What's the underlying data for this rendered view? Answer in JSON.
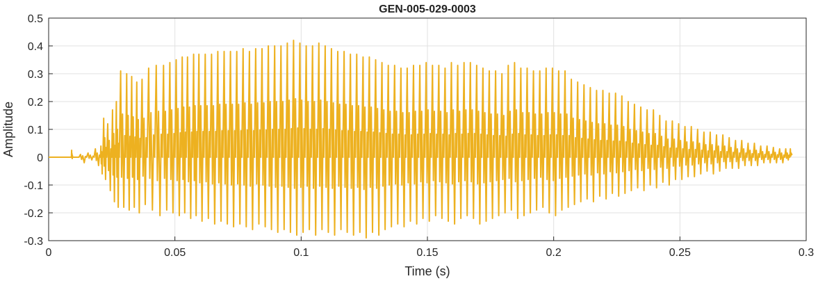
{
  "chart_data": {
    "type": "line",
    "title": "GEN-005-029-0003",
    "xlabel": "Time (s)",
    "ylabel": "Amplitude",
    "xlim": [
      0,
      0.3
    ],
    "ylim": [
      -0.3,
      0.5
    ],
    "xticks": [
      0,
      0.05,
      0.1,
      0.15,
      0.2,
      0.25,
      0.3
    ],
    "xtick_labels": [
      "0",
      "0.05",
      "0.1",
      "0.15",
      "0.2",
      "0.25",
      "0.3"
    ],
    "yticks": [
      -0.3,
      -0.2,
      -0.1,
      0,
      0.1,
      0.2,
      0.3,
      0.4,
      0.5
    ],
    "ytick_labels": [
      "-0.3",
      "-0.2",
      "-0.1",
      "0",
      "0.1",
      "0.2",
      "0.3",
      "0.4",
      "0.5"
    ],
    "grid": true,
    "line_color": "#EDB120",
    "series": [
      {
        "x": [
          0,
          0.005,
          0.009,
          0.0095,
          0.012,
          0.015,
          0.018,
          0.0205,
          0.0215,
          0.023,
          0.025,
          0.0265,
          0.028,
          0.0305,
          0.0325,
          0.0345,
          0.0365,
          0.039,
          0.042,
          0.045,
          0.0475,
          0.05,
          0.0525,
          0.0545,
          0.057,
          0.059,
          0.0615,
          0.064,
          0.0665,
          0.069,
          0.0715,
          0.074,
          0.0765,
          0.079,
          0.0815,
          0.084,
          0.0865,
          0.089,
          0.0915,
          0.094,
          0.0965,
          0.099,
          0.1015,
          0.104,
          0.1065,
          0.109,
          0.1115,
          0.114,
          0.1165,
          0.119,
          0.1215,
          0.124,
          0.1265,
          0.129,
          0.1315,
          0.134,
          0.1365,
          0.139,
          0.1415,
          0.144,
          0.1465,
          0.149,
          0.1515,
          0.154,
          0.1565,
          0.159,
          0.1615,
          0.164,
          0.1665,
          0.169,
          0.1715,
          0.174,
          0.1765,
          0.179,
          0.1815,
          0.184,
          0.1865,
          0.189,
          0.1915,
          0.194,
          0.1965,
          0.199,
          0.2015,
          0.204,
          0.2065,
          0.209,
          0.2115,
          0.214,
          0.2165,
          0.219,
          0.2215,
          0.224,
          0.2265,
          0.229,
          0.2315,
          0.234,
          0.2365,
          0.239,
          0.2415,
          0.244,
          0.2465,
          0.249,
          0.2515,
          0.254,
          0.2565,
          0.259,
          0.2615,
          0.264,
          0.2665,
          0.269,
          0.2715,
          0.274,
          0.2765,
          0.279,
          0.2815,
          0.284,
          0.2865,
          0.289,
          0.2915,
          0.2935
        ],
        "peaks": [
          0.0,
          0.0,
          0.025,
          0.0,
          0.01,
          0.015,
          0.03,
          0.04,
          0.14,
          0.12,
          0.17,
          0.2,
          0.31,
          0.3,
          0.29,
          0.27,
          0.28,
          0.32,
          0.33,
          0.33,
          0.34,
          0.35,
          0.36,
          0.36,
          0.37,
          0.37,
          0.37,
          0.37,
          0.38,
          0.38,
          0.38,
          0.38,
          0.39,
          0.38,
          0.39,
          0.39,
          0.4,
          0.4,
          0.4,
          0.41,
          0.42,
          0.41,
          0.4,
          0.4,
          0.41,
          0.4,
          0.39,
          0.38,
          0.38,
          0.37,
          0.37,
          0.36,
          0.36,
          0.35,
          0.34,
          0.33,
          0.33,
          0.32,
          0.32,
          0.33,
          0.33,
          0.34,
          0.33,
          0.33,
          0.32,
          0.34,
          0.33,
          0.34,
          0.34,
          0.33,
          0.32,
          0.31,
          0.31,
          0.3,
          0.33,
          0.34,
          0.32,
          0.32,
          0.31,
          0.31,
          0.32,
          0.32,
          0.31,
          0.31,
          0.28,
          0.27,
          0.26,
          0.25,
          0.24,
          0.24,
          0.23,
          0.23,
          0.22,
          0.2,
          0.19,
          0.18,
          0.17,
          0.17,
          0.15,
          0.13,
          0.13,
          0.12,
          0.11,
          0.11,
          0.1,
          0.09,
          0.09,
          0.08,
          0.08,
          0.07,
          0.06,
          0.06,
          0.05,
          0.05,
          0.04,
          0.04,
          0.035,
          0.03,
          0.03,
          0.03
        ],
        "troughs": [
          0.0,
          0.0,
          -0.005,
          0.0,
          -0.02,
          -0.01,
          -0.03,
          -0.06,
          -0.08,
          -0.12,
          -0.16,
          -0.18,
          -0.18,
          -0.19,
          -0.18,
          -0.2,
          -0.17,
          -0.19,
          -0.21,
          -0.19,
          -0.2,
          -0.21,
          -0.2,
          -0.22,
          -0.21,
          -0.23,
          -0.22,
          -0.24,
          -0.23,
          -0.24,
          -0.25,
          -0.24,
          -0.25,
          -0.26,
          -0.24,
          -0.25,
          -0.26,
          -0.27,
          -0.26,
          -0.27,
          -0.28,
          -0.27,
          -0.26,
          -0.28,
          -0.26,
          -0.27,
          -0.28,
          -0.26,
          -0.27,
          -0.28,
          -0.27,
          -0.29,
          -0.27,
          -0.28,
          -0.26,
          -0.25,
          -0.24,
          -0.25,
          -0.23,
          -0.24,
          -0.22,
          -0.23,
          -0.21,
          -0.22,
          -0.23,
          -0.24,
          -0.22,
          -0.21,
          -0.22,
          -0.24,
          -0.23,
          -0.22,
          -0.21,
          -0.2,
          -0.19,
          -0.22,
          -0.21,
          -0.2,
          -0.19,
          -0.18,
          -0.2,
          -0.21,
          -0.19,
          -0.18,
          -0.17,
          -0.16,
          -0.15,
          -0.16,
          -0.14,
          -0.15,
          -0.13,
          -0.14,
          -0.13,
          -0.12,
          -0.11,
          -0.12,
          -0.1,
          -0.11,
          -0.09,
          -0.1,
          -0.08,
          -0.08,
          -0.07,
          -0.07,
          -0.06,
          -0.05,
          -0.06,
          -0.05,
          -0.04,
          -0.04,
          -0.04,
          -0.03,
          -0.03,
          -0.03,
          -0.02,
          -0.02,
          -0.02,
          -0.02,
          -0.01,
          0.01
        ]
      }
    ]
  }
}
